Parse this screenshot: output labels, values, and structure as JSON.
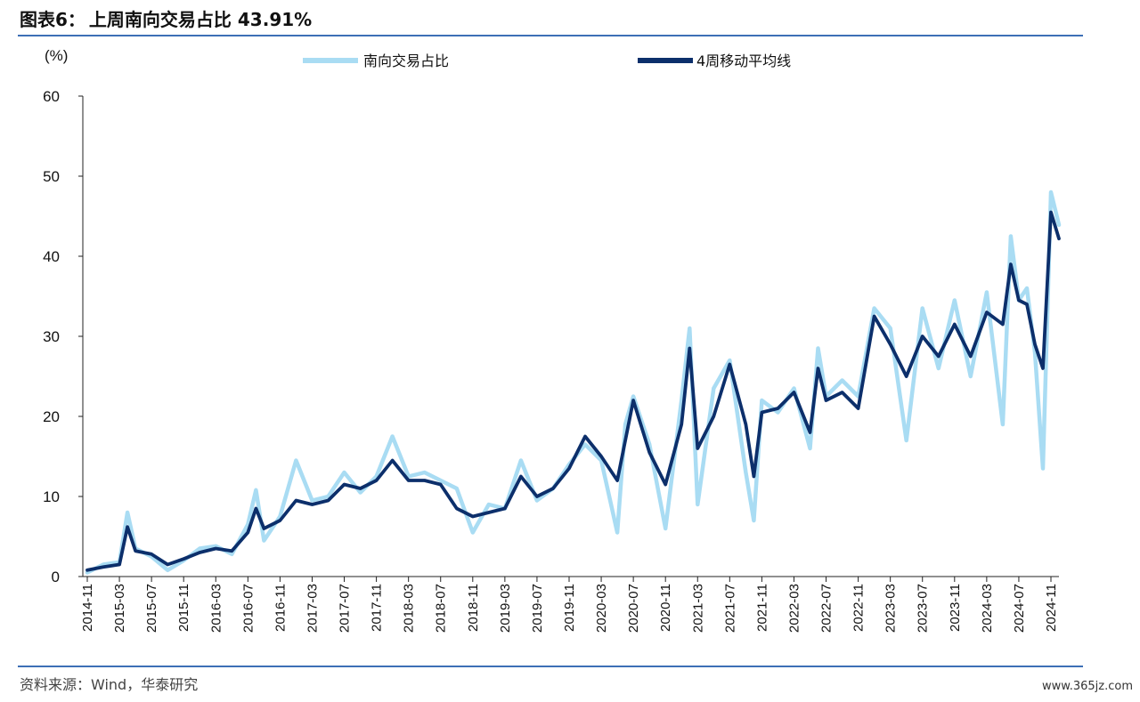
{
  "title": {
    "prefix": "图表6：",
    "text": "上周南向交易占比 43.91%"
  },
  "source": "资料来源：Wind，华泰研究",
  "watermark": "www.365jz.com",
  "colors": {
    "rule": "#3d6fb6",
    "series_ratio": "#a9dcf3",
    "series_ma": "#0c2f6b"
  },
  "chart_data": {
    "type": "line",
    "y_unit": "(%)",
    "ylim": [
      0,
      60
    ],
    "y_ticks": [
      0,
      10,
      20,
      30,
      40,
      50,
      60
    ],
    "x_tick_labels": [
      "2014-11",
      "2015-03",
      "2015-07",
      "2015-11",
      "2016-03",
      "2016-07",
      "2016-11",
      "2017-03",
      "2017-07",
      "2017-11",
      "2018-03",
      "2018-07",
      "2018-11",
      "2019-03",
      "2019-07",
      "2019-11",
      "2020-03",
      "2020-07",
      "2020-11",
      "2021-03",
      "2021-07",
      "2021-11",
      "2022-03",
      "2022-07",
      "2022-11",
      "2023-03",
      "2023-07",
      "2023-11",
      "2024-03",
      "2024-07",
      "2024-11"
    ],
    "legend_position": "top",
    "x": [
      "2014-11",
      "2015-01",
      "2015-03",
      "2015-04",
      "2015-05",
      "2015-07",
      "2015-09",
      "2015-11",
      "2016-01",
      "2016-03",
      "2016-05",
      "2016-07",
      "2016-08",
      "2016-09",
      "2016-11",
      "2017-01",
      "2017-03",
      "2017-05",
      "2017-07",
      "2017-09",
      "2017-11",
      "2018-01",
      "2018-03",
      "2018-05",
      "2018-07",
      "2018-09",
      "2018-11",
      "2019-01",
      "2019-03",
      "2019-05",
      "2019-07",
      "2019-09",
      "2019-11",
      "2020-01",
      "2020-03",
      "2020-05",
      "2020-06",
      "2020-07",
      "2020-09",
      "2020-11",
      "2021-01",
      "2021-02",
      "2021-03",
      "2021-05",
      "2021-07",
      "2021-09",
      "2021-10",
      "2021-11",
      "2022-01",
      "2022-03",
      "2022-05",
      "2022-06",
      "2022-07",
      "2022-09",
      "2022-11",
      "2023-01",
      "2023-03",
      "2023-05",
      "2023-07",
      "2023-09",
      "2023-11",
      "2024-01",
      "2024-03",
      "2024-05",
      "2024-06",
      "2024-07",
      "2024-08",
      "2024-09",
      "2024-10",
      "2024-11",
      "2024-12"
    ],
    "series": [
      {
        "name": "南向交易占比",
        "values": [
          0.5,
          1.5,
          1.8,
          8.0,
          3.5,
          2.5,
          0.8,
          2.0,
          3.5,
          3.8,
          2.8,
          6.5,
          10.8,
          4.5,
          7.5,
          14.5,
          9.5,
          10.0,
          13.0,
          10.5,
          12.5,
          17.5,
          12.5,
          13.0,
          12.0,
          11.0,
          5.5,
          9.0,
          8.5,
          14.5,
          9.5,
          11.0,
          14.0,
          16.5,
          14.5,
          5.5,
          19.0,
          22.5,
          16.5,
          6.0,
          22.0,
          31.0,
          9.0,
          23.5,
          27.0,
          13.0,
          7.0,
          22.0,
          20.5,
          23.5,
          16.0,
          28.5,
          22.5,
          24.5,
          22.5,
          33.5,
          31.0,
          17.0,
          33.5,
          26.0,
          34.5,
          25.0,
          35.5,
          19.0,
          42.5,
          34.5,
          36.0,
          28.0,
          13.5,
          48.0,
          43.91
        ]
      },
      {
        "name": "4周移动平均线",
        "values": [
          0.8,
          1.2,
          1.5,
          6.2,
          3.2,
          2.8,
          1.5,
          2.2,
          3.0,
          3.5,
          3.2,
          5.5,
          8.5,
          6.0,
          7.0,
          9.5,
          9.0,
          9.5,
          11.5,
          11.0,
          12.0,
          14.5,
          12.0,
          12.0,
          11.5,
          8.5,
          7.5,
          8.0,
          8.5,
          12.5,
          10.0,
          11.0,
          13.5,
          17.5,
          15.0,
          12.0,
          17.0,
          22.0,
          15.5,
          11.5,
          19.0,
          28.5,
          16.0,
          20.0,
          26.5,
          19.0,
          12.5,
          20.5,
          21.0,
          23.0,
          18.0,
          26.0,
          22.0,
          23.0,
          21.0,
          32.5,
          29.0,
          25.0,
          30.0,
          27.5,
          31.5,
          27.5,
          33.0,
          31.5,
          39.0,
          34.5,
          34.0,
          29.0,
          26.0,
          45.5,
          42.2
        ]
      }
    ]
  }
}
